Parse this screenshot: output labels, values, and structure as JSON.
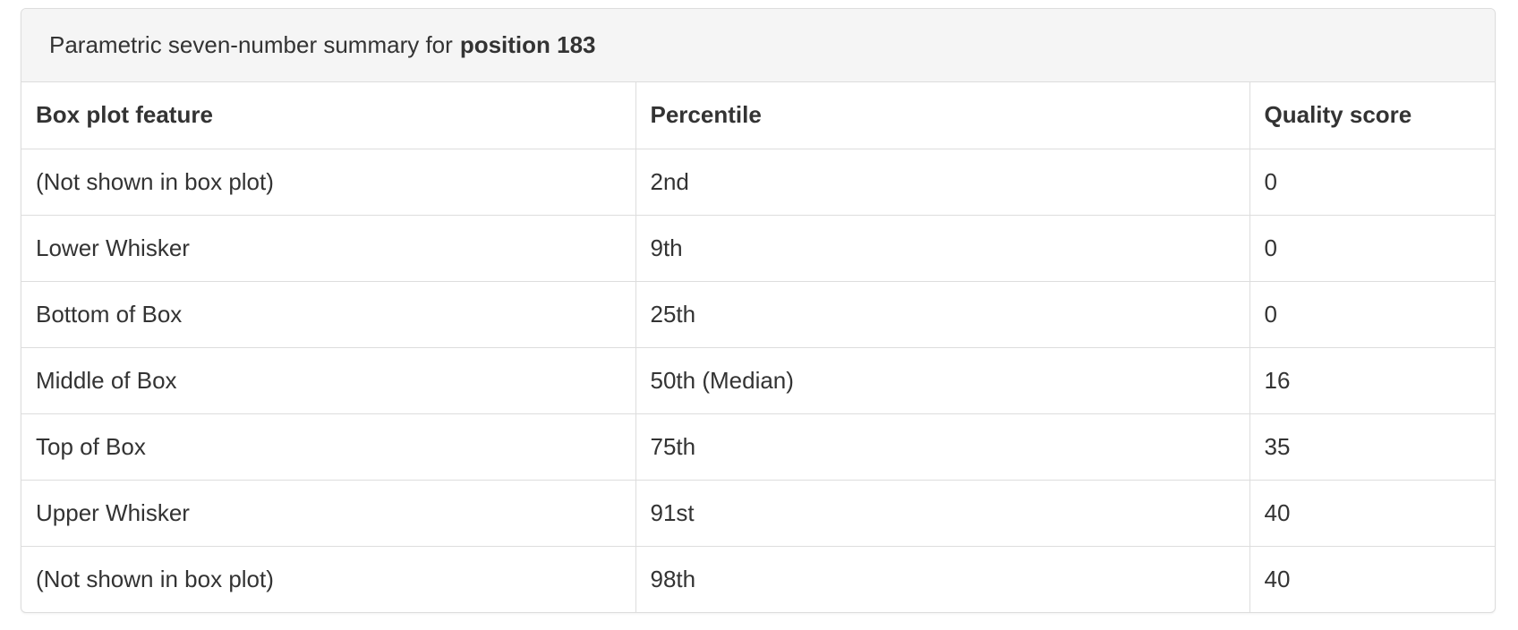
{
  "panel": {
    "heading_prefix": "Parametric seven-number summary for",
    "heading_bold": "position 183"
  },
  "table": {
    "headers": [
      "Box plot feature",
      "Percentile",
      "Quality score"
    ],
    "rows": [
      {
        "feature": "(Not shown in box plot)",
        "percentile": "2nd",
        "score": "0"
      },
      {
        "feature": "Lower Whisker",
        "percentile": "9th",
        "score": "0"
      },
      {
        "feature": "Bottom of Box",
        "percentile": "25th",
        "score": "0"
      },
      {
        "feature": "Middle of Box",
        "percentile": "50th (Median)",
        "score": "16"
      },
      {
        "feature": "Top of Box",
        "percentile": "75th",
        "score": "35"
      },
      {
        "feature": "Upper Whisker",
        "percentile": "91st",
        "score": "40"
      },
      {
        "feature": "(Not shown in box plot)",
        "percentile": "98th",
        "score": "40"
      }
    ]
  }
}
